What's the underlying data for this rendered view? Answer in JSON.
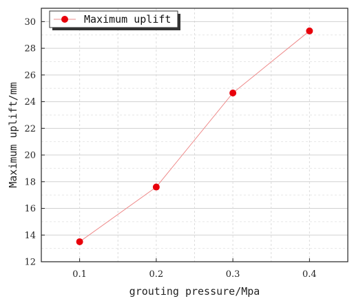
{
  "chart_data": {
    "type": "line",
    "xlabel": "grouting pressure/Mpa",
    "ylabel": "Maximum uplift/mm",
    "xlim": [
      0.05,
      0.45
    ],
    "ylim": [
      12,
      31
    ],
    "x_ticks": [
      0.1,
      0.2,
      0.3,
      0.4
    ],
    "x_tick_labels": [
      "0.1",
      "0.2",
      "0.3",
      "0.4"
    ],
    "y_ticks": [
      12,
      14,
      16,
      18,
      20,
      22,
      24,
      26,
      28,
      30
    ],
    "y_tick_labels": [
      "12",
      "14",
      "16",
      "18",
      "20",
      "22",
      "24",
      "26",
      "28",
      "30"
    ],
    "grid": true,
    "legend_position": "top-left",
    "series": [
      {
        "name": "Maximum uplift",
        "x": [
          0.1,
          0.2,
          0.3,
          0.4
        ],
        "values": [
          13.5,
          17.6,
          24.65,
          29.3
        ],
        "marker_color": "#e8000b",
        "line_color": "#ee8888"
      }
    ]
  }
}
